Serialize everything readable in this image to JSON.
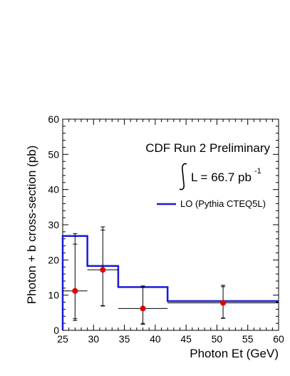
{
  "chart_data": {
    "type": "line",
    "xlabel": "Photon Et (GeV)",
    "ylabel": "Photon + b cross-section (pb)",
    "xlim": [
      25,
      60
    ],
    "ylim": [
      0,
      60
    ],
    "xticks": [
      25,
      30,
      35,
      40,
      45,
      50,
      55,
      60
    ],
    "yticks": [
      0,
      10,
      20,
      30,
      40,
      50,
      60
    ],
    "grid": false,
    "legend_position": "top-right",
    "annotations": {
      "experiment": "CDF Run 2 Preliminary",
      "luminosity_prefix": "L = 66.7 pb",
      "luminosity_exponent": "-1"
    },
    "series": [
      {
        "name": "LO (Pythia CTEQ5L)",
        "kind": "step",
        "color": "#1a1ad6",
        "bins": [
          {
            "x_low": 25,
            "x_high": 29,
            "y": 26.8
          },
          {
            "x_low": 29,
            "x_high": 34,
            "y": 18.3
          },
          {
            "x_low": 34,
            "x_high": 42,
            "y": 12.3
          },
          {
            "x_low": 42,
            "x_high": 60,
            "y": 8.3
          }
        ]
      },
      {
        "kind": "points",
        "color": "#e00000",
        "points": [
          {
            "x": 27,
            "y": 11.2,
            "x_err": 2,
            "y_low_inner": 3.3,
            "y_high_inner": 24.5,
            "y_low_outer": 2.8,
            "y_high_outer": 27.5
          },
          {
            "x": 31.5,
            "y": 17.2,
            "x_err": 2.5,
            "y_low_inner": 7.0,
            "y_high_inner": 28.5,
            "y_low_outer": 6.9,
            "y_high_outer": 29.4
          },
          {
            "x": 38,
            "y": 6.2,
            "x_err": 4,
            "y_low_inner": 2.0,
            "y_high_inner": 12.3,
            "y_low_outer": 1.7,
            "y_high_outer": 12.6
          },
          {
            "x": 51,
            "y": 7.8,
            "x_err": 9,
            "y_low_inner": 3.5,
            "y_high_inner": 12.4,
            "y_low_outer": 3.4,
            "y_high_outer": 12.8
          }
        ]
      }
    ]
  }
}
